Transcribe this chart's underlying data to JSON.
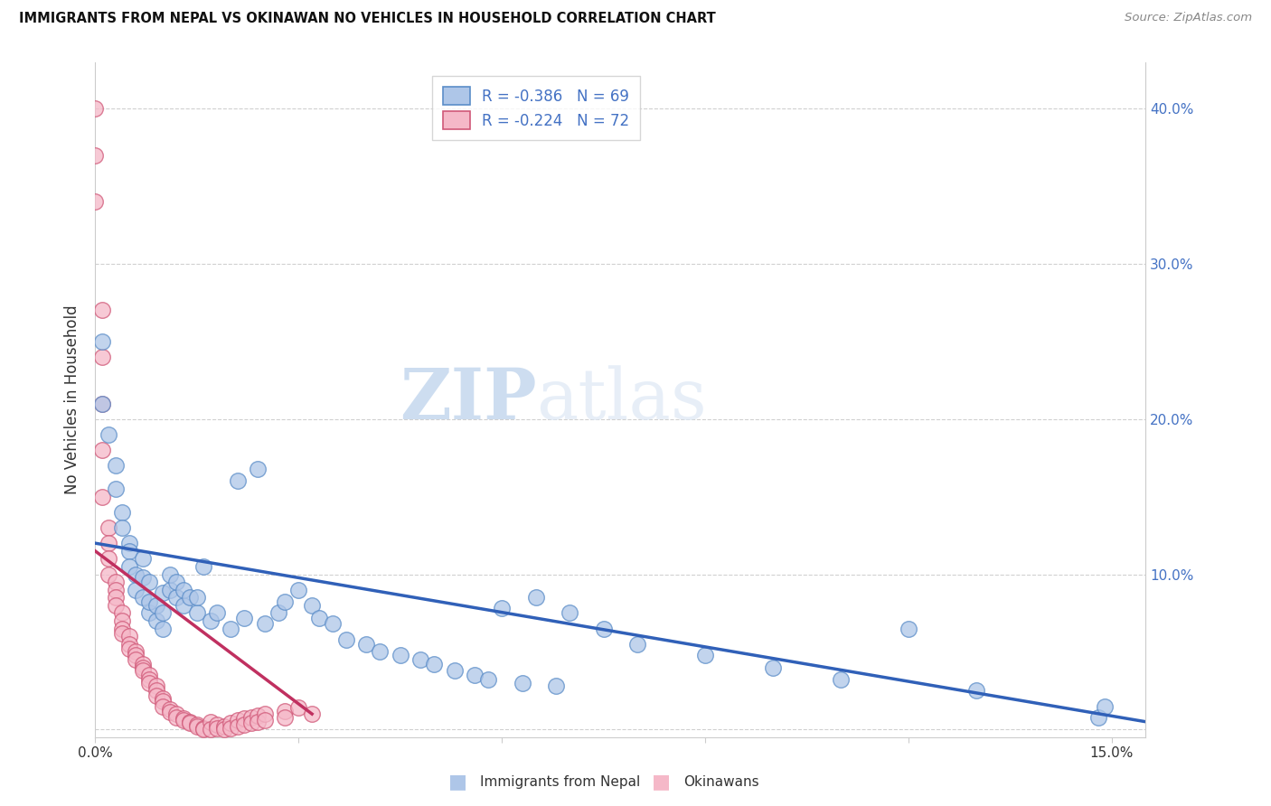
{
  "title": "IMMIGRANTS FROM NEPAL VS OKINAWAN NO VEHICLES IN HOUSEHOLD CORRELATION CHART",
  "source": "Source: ZipAtlas.com",
  "ylabel": "No Vehicles in Household",
  "xlim": [
    0.0,
    0.155
  ],
  "ylim": [
    -0.005,
    0.43
  ],
  "nepal_R": -0.386,
  "nepal_N": 69,
  "okinawa_R": -0.224,
  "okinawa_N": 72,
  "nepal_color": "#aec6e8",
  "okinawa_color": "#f5b8c8",
  "nepal_edge_color": "#5b8dc8",
  "okinawa_edge_color": "#d05878",
  "nepal_line_color": "#3060b8",
  "okinawa_line_color": "#c03060",
  "watermark_zip": "ZIP",
  "watermark_atlas": "atlas",
  "nepal_scatter_x": [
    0.001,
    0.001,
    0.002,
    0.003,
    0.003,
    0.004,
    0.004,
    0.005,
    0.005,
    0.005,
    0.006,
    0.006,
    0.007,
    0.007,
    0.007,
    0.008,
    0.008,
    0.008,
    0.009,
    0.009,
    0.01,
    0.01,
    0.01,
    0.011,
    0.011,
    0.012,
    0.012,
    0.013,
    0.013,
    0.014,
    0.015,
    0.015,
    0.016,
    0.017,
    0.018,
    0.02,
    0.021,
    0.022,
    0.024,
    0.025,
    0.027,
    0.028,
    0.03,
    0.032,
    0.033,
    0.035,
    0.037,
    0.04,
    0.042,
    0.045,
    0.048,
    0.05,
    0.053,
    0.056,
    0.058,
    0.06,
    0.063,
    0.065,
    0.068,
    0.07,
    0.075,
    0.08,
    0.09,
    0.1,
    0.11,
    0.12,
    0.13,
    0.148,
    0.149
  ],
  "nepal_scatter_y": [
    0.21,
    0.25,
    0.19,
    0.17,
    0.155,
    0.14,
    0.13,
    0.12,
    0.115,
    0.105,
    0.1,
    0.09,
    0.085,
    0.098,
    0.11,
    0.075,
    0.082,
    0.095,
    0.07,
    0.08,
    0.065,
    0.075,
    0.088,
    0.09,
    0.1,
    0.085,
    0.095,
    0.08,
    0.09,
    0.085,
    0.075,
    0.085,
    0.105,
    0.07,
    0.075,
    0.065,
    0.16,
    0.072,
    0.168,
    0.068,
    0.075,
    0.082,
    0.09,
    0.08,
    0.072,
    0.068,
    0.058,
    0.055,
    0.05,
    0.048,
    0.045,
    0.042,
    0.038,
    0.035,
    0.032,
    0.078,
    0.03,
    0.085,
    0.028,
    0.075,
    0.065,
    0.055,
    0.048,
    0.04,
    0.032,
    0.065,
    0.025,
    0.008,
    0.015
  ],
  "okinawa_scatter_x": [
    0.0,
    0.0,
    0.0,
    0.001,
    0.001,
    0.001,
    0.001,
    0.001,
    0.002,
    0.002,
    0.002,
    0.002,
    0.003,
    0.003,
    0.003,
    0.003,
    0.004,
    0.004,
    0.004,
    0.004,
    0.005,
    0.005,
    0.005,
    0.006,
    0.006,
    0.006,
    0.007,
    0.007,
    0.007,
    0.008,
    0.008,
    0.008,
    0.009,
    0.009,
    0.009,
    0.01,
    0.01,
    0.01,
    0.011,
    0.011,
    0.012,
    0.012,
    0.013,
    0.013,
    0.014,
    0.014,
    0.015,
    0.015,
    0.016,
    0.016,
    0.017,
    0.017,
    0.018,
    0.018,
    0.019,
    0.019,
    0.02,
    0.02,
    0.021,
    0.021,
    0.022,
    0.022,
    0.023,
    0.023,
    0.024,
    0.024,
    0.025,
    0.025,
    0.028,
    0.028,
    0.03,
    0.032
  ],
  "okinawa_scatter_y": [
    0.37,
    0.4,
    0.34,
    0.27,
    0.24,
    0.21,
    0.18,
    0.15,
    0.13,
    0.12,
    0.11,
    0.1,
    0.095,
    0.09,
    0.085,
    0.08,
    0.075,
    0.07,
    0.065,
    0.062,
    0.06,
    0.055,
    0.052,
    0.05,
    0.048,
    0.045,
    0.042,
    0.04,
    0.038,
    0.035,
    0.032,
    0.03,
    0.028,
    0.025,
    0.022,
    0.02,
    0.018,
    0.015,
    0.013,
    0.011,
    0.01,
    0.008,
    0.007,
    0.006,
    0.005,
    0.004,
    0.003,
    0.002,
    0.001,
    0.0,
    0.005,
    0.0,
    0.003,
    0.001,
    0.002,
    0.0,
    0.004,
    0.001,
    0.006,
    0.002,
    0.007,
    0.003,
    0.008,
    0.004,
    0.009,
    0.005,
    0.01,
    0.006,
    0.012,
    0.008,
    0.014,
    0.01
  ],
  "nepal_line_x": [
    0.0,
    0.155
  ],
  "nepal_line_y": [
    0.12,
    0.005
  ],
  "okinawa_line_x": [
    0.0,
    0.032
  ],
  "okinawa_line_y": [
    0.115,
    0.01
  ]
}
